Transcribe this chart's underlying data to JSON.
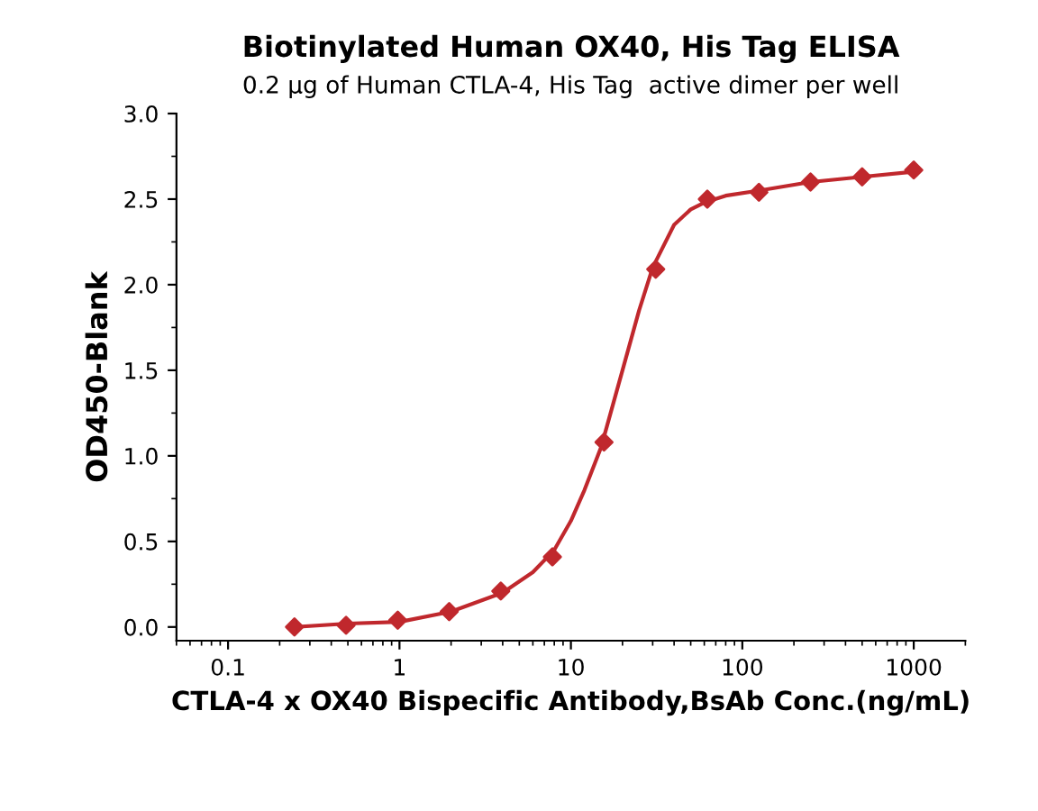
{
  "chart_data": {
    "type": "scatter",
    "title": "Biotinylated Human OX40, His Tag ELISA",
    "subtitle": "0.2 µg of Human CTLA-4, His Tag  active dimer per well",
    "xlabel": "CTLA-4 x OX40 Bispecific Antibody,BsAb Conc.(ng/mL)",
    "ylabel": "OD450-Blank",
    "log": "x",
    "marker": "diamond",
    "grid": false,
    "xlim": [
      0.05,
      2000
    ],
    "xticks": [
      0.1,
      1,
      10,
      100,
      1000
    ],
    "ylim": [
      -0.08,
      3.0
    ],
    "yticks": [
      {
        "value": 0,
        "label": "0.0"
      },
      0.5,
      {
        "value": 1,
        "label": "1.0"
      },
      1.5,
      {
        "value": 2,
        "label": "2.0"
      },
      2.5,
      {
        "value": 3,
        "label": "3.0"
      }
    ],
    "series": [
      {
        "color": "#c0282d",
        "x": [
          0.244,
          0.488,
          0.977,
          1.95,
          3.9,
          7.8,
          15.6,
          31.25,
          62.5,
          125,
          250,
          500,
          1000
        ],
        "values": [
          0.0,
          0.01,
          0.04,
          0.09,
          0.21,
          0.41,
          1.08,
          2.09,
          2.5,
          2.54,
          2.6,
          2.63,
          2.67
        ]
      },
      {
        "type": "line",
        "color": "#c0282d",
        "line_style": "solid",
        "marker": "none",
        "x": [
          0.244,
          0.5,
          1,
          2,
          4,
          6,
          8,
          10,
          12,
          15,
          20,
          25,
          30,
          40,
          50,
          60,
          80,
          125,
          250,
          500,
          1000
        ],
        "values": [
          0.0,
          0.02,
          0.03,
          0.09,
          0.2,
          0.32,
          0.45,
          0.62,
          0.8,
          1.05,
          1.5,
          1.85,
          2.1,
          2.35,
          2.44,
          2.48,
          2.52,
          2.55,
          2.6,
          2.63,
          2.66
        ]
      }
    ]
  }
}
